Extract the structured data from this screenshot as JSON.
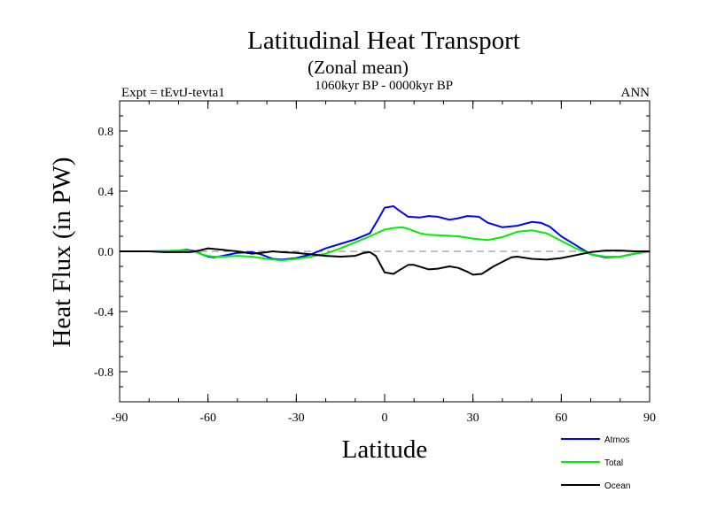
{
  "chart_data": {
    "type": "line",
    "title": "Latitudinal Heat Transport",
    "subtitle": "(Zonal mean)",
    "period": "1060kyr BP - 0000kyr BP",
    "expt_label": "Expt = tEvtJ-tevta1",
    "season": "ANN",
    "xlabel": "Latitude",
    "ylabel": "Heat Flux (in PW)",
    "xlim": [
      -90,
      90
    ],
    "ylim": [
      -1.0,
      1.0
    ],
    "x_ticks": [
      {
        "value": -90,
        "label": "-90"
      },
      {
        "value": -60,
        "label": "-60"
      },
      {
        "value": -30,
        "label": "-30"
      },
      {
        "value": 0,
        "label": "0"
      },
      {
        "value": 30,
        "label": "30"
      },
      {
        "value": 60,
        "label": "60"
      },
      {
        "value": 90,
        "label": "90"
      }
    ],
    "y_ticks": [
      {
        "value": 0.8,
        "label": "0.8"
      },
      {
        "value": 0.4,
        "label": "0.4"
      },
      {
        "value": 0.0,
        "label": "0.0"
      },
      {
        "value": -0.4,
        "label": "-0.4"
      },
      {
        "value": -0.8,
        "label": "-0.8"
      }
    ],
    "x_minor_step": 10,
    "y_minor_step": 0.1,
    "zero_line": {
      "style": "dashed",
      "color": "#808080"
    },
    "series": [
      {
        "name": "Atmos",
        "color": "#0000ff",
        "x": [
          -90,
          -80,
          -75,
          -70,
          -67,
          -64,
          -62,
          -60,
          -58,
          -55,
          -50,
          -45,
          -42,
          -38,
          -35,
          -30,
          -25,
          -20,
          -15,
          -10,
          -5,
          -2,
          0,
          3,
          5,
          8,
          12,
          15,
          18,
          22,
          25,
          28,
          32,
          35,
          40,
          45,
          50,
          53,
          56,
          60,
          65,
          70,
          75,
          80,
          85,
          90
        ],
        "y": [
          0.0,
          0.0,
          0.002,
          0.005,
          0.01,
          0.0,
          -0.02,
          -0.035,
          -0.04,
          -0.03,
          -0.01,
          -0.005,
          -0.02,
          -0.05,
          -0.055,
          -0.045,
          -0.02,
          0.02,
          0.05,
          0.08,
          0.12,
          0.22,
          0.29,
          0.3,
          0.27,
          0.23,
          0.225,
          0.235,
          0.23,
          0.21,
          0.22,
          0.235,
          0.23,
          0.19,
          0.16,
          0.17,
          0.195,
          0.19,
          0.165,
          0.1,
          0.04,
          -0.02,
          -0.04,
          -0.035,
          -0.015,
          0.0
        ]
      },
      {
        "name": "Total",
        "color": "#00ee00",
        "x": [
          -90,
          -80,
          -75,
          -70,
          -67,
          -64,
          -62,
          -60,
          -58,
          -55,
          -50,
          -45,
          -40,
          -35,
          -30,
          -25,
          -20,
          -15,
          -10,
          -5,
          0,
          3,
          6,
          8,
          12,
          15,
          20,
          25,
          30,
          35,
          40,
          45,
          50,
          55,
          60,
          65,
          70,
          75,
          80,
          85,
          90
        ],
        "y": [
          0.0,
          0.0,
          0.002,
          0.005,
          0.005,
          -0.005,
          -0.02,
          -0.03,
          -0.035,
          -0.035,
          -0.03,
          -0.035,
          -0.05,
          -0.06,
          -0.05,
          -0.035,
          -0.015,
          0.02,
          0.06,
          0.1,
          0.145,
          0.155,
          0.16,
          0.15,
          0.12,
          0.11,
          0.105,
          0.1,
          0.085,
          0.075,
          0.095,
          0.13,
          0.14,
          0.12,
          0.07,
          0.02,
          -0.02,
          -0.035,
          -0.035,
          -0.015,
          0.0
        ]
      },
      {
        "name": "Ocean",
        "color": "#000000",
        "x": [
          -90,
          -80,
          -75,
          -70,
          -66,
          -63,
          -60,
          -55,
          -50,
          -45,
          -42,
          -38,
          -35,
          -30,
          -25,
          -20,
          -15,
          -10,
          -7,
          -5,
          -3,
          0,
          3,
          5,
          8,
          10,
          15,
          18,
          22,
          25,
          28,
          30,
          33,
          37,
          40,
          43,
          45,
          50,
          55,
          60,
          65,
          70,
          75,
          80,
          85,
          90
        ],
        "y": [
          0.0,
          0.0,
          -0.005,
          -0.005,
          -0.005,
          0.005,
          0.02,
          0.01,
          0.0,
          -0.015,
          -0.01,
          0.0,
          -0.005,
          -0.01,
          -0.02,
          -0.03,
          -0.035,
          -0.03,
          -0.01,
          -0.005,
          -0.03,
          -0.14,
          -0.15,
          -0.125,
          -0.09,
          -0.09,
          -0.12,
          -0.115,
          -0.1,
          -0.11,
          -0.135,
          -0.155,
          -0.15,
          -0.1,
          -0.07,
          -0.04,
          -0.035,
          -0.05,
          -0.055,
          -0.045,
          -0.025,
          -0.005,
          0.005,
          0.005,
          0.0,
          0.0
        ]
      }
    ]
  }
}
